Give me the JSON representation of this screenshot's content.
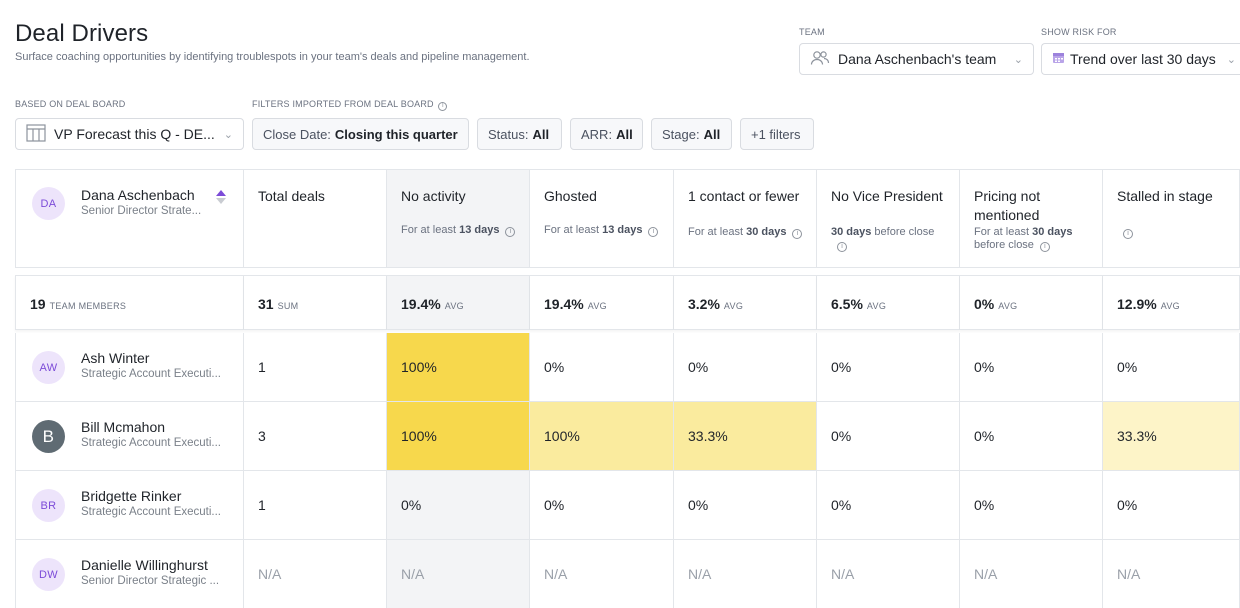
{
  "header": {
    "title": "Deal Drivers",
    "subtitle": "Surface coaching opportunities by identifying troublespots in your team's deals and pipeline management."
  },
  "team": {
    "label": "TEAM",
    "value": "Dana Aschenbach's team"
  },
  "risk": {
    "label": "SHOW RISK FOR",
    "value": "Trend over last 30 days"
  },
  "deal_board": {
    "label": "BASED ON DEAL BOARD",
    "value": "VP Forecast this Q - DE..."
  },
  "filters": {
    "label": "FILTERS IMPORTED FROM DEAL BOARD",
    "close_date_prefix": "Close Date:",
    "close_date_value": "Closing this quarter",
    "status_prefix": "Status:",
    "status_value": "All",
    "arr_prefix": "ARR:",
    "arr_value": "All",
    "stage_prefix": "Stage:",
    "stage_value": "All",
    "more": "+1 filters"
  },
  "manager": {
    "initials": "DA",
    "name": "Dana Aschenbach",
    "role": "Senior Director Strate..."
  },
  "columns": [
    {
      "title": "Total deals"
    },
    {
      "title": "No activity",
      "sub_pre": "For at least ",
      "sub_bold": "13 days",
      "sub_post": ""
    },
    {
      "title": "Ghosted",
      "sub_pre": "For at least ",
      "sub_bold": "13 days",
      "sub_post": ""
    },
    {
      "title": "1 contact or fewer",
      "sub_pre": "For at least ",
      "sub_bold": "30 days",
      "sub_post": ""
    },
    {
      "title": "No Vice President",
      "sub_pre": "",
      "sub_bold": "30 days",
      "sub_post": " before close"
    },
    {
      "title": "Pricing not mentioned",
      "sub_pre": "For at least ",
      "sub_bold": "30 days",
      "sub_post": " before close"
    },
    {
      "title": "Stalled in stage",
      "sub_pre": "",
      "sub_bold": "",
      "sub_post": ""
    }
  ],
  "summary": {
    "members_count": "19",
    "members_label": "TEAM MEMBERS",
    "values": [
      {
        "value": "31",
        "unit": "SUM"
      },
      {
        "value": "19.4%",
        "unit": "AVG"
      },
      {
        "value": "19.4%",
        "unit": "AVG"
      },
      {
        "value": "3.2%",
        "unit": "AVG"
      },
      {
        "value": "6.5%",
        "unit": "AVG"
      },
      {
        "value": "0%",
        "unit": "AVG"
      },
      {
        "value": "12.9%",
        "unit": "AVG"
      }
    ]
  },
  "rows": [
    {
      "initials": "AW",
      "photo": false,
      "name": "Ash Winter",
      "role": "Strategic Account Executi...",
      "values": [
        "1",
        "100%",
        "0%",
        "0%",
        "0%",
        "0%",
        "0%"
      ]
    },
    {
      "initials": "B",
      "photo": true,
      "name": "Bill Mcmahon",
      "role": "Strategic Account Executi...",
      "values": [
        "3",
        "100%",
        "100%",
        "33.3%",
        "0%",
        "0%",
        "33.3%"
      ]
    },
    {
      "initials": "BR",
      "photo": false,
      "name": "Bridgette Rinker",
      "role": "Strategic Account Executi...",
      "values": [
        "1",
        "0%",
        "0%",
        "0%",
        "0%",
        "0%",
        "0%"
      ]
    },
    {
      "initials": "DW",
      "photo": false,
      "name": "Danielle Willinghurst",
      "role": "Senior Director Strategic ...",
      "values": [
        "N/A",
        "N/A",
        "N/A",
        "N/A",
        "N/A",
        "N/A",
        "N/A"
      ]
    }
  ],
  "colors": {
    "heat_high": "#f7d84c",
    "heat_mid": "#faeb9e",
    "heat_low": "#fdf4c8",
    "highlight_column": "#f3f4f6",
    "accent": "#7c4bd8"
  }
}
